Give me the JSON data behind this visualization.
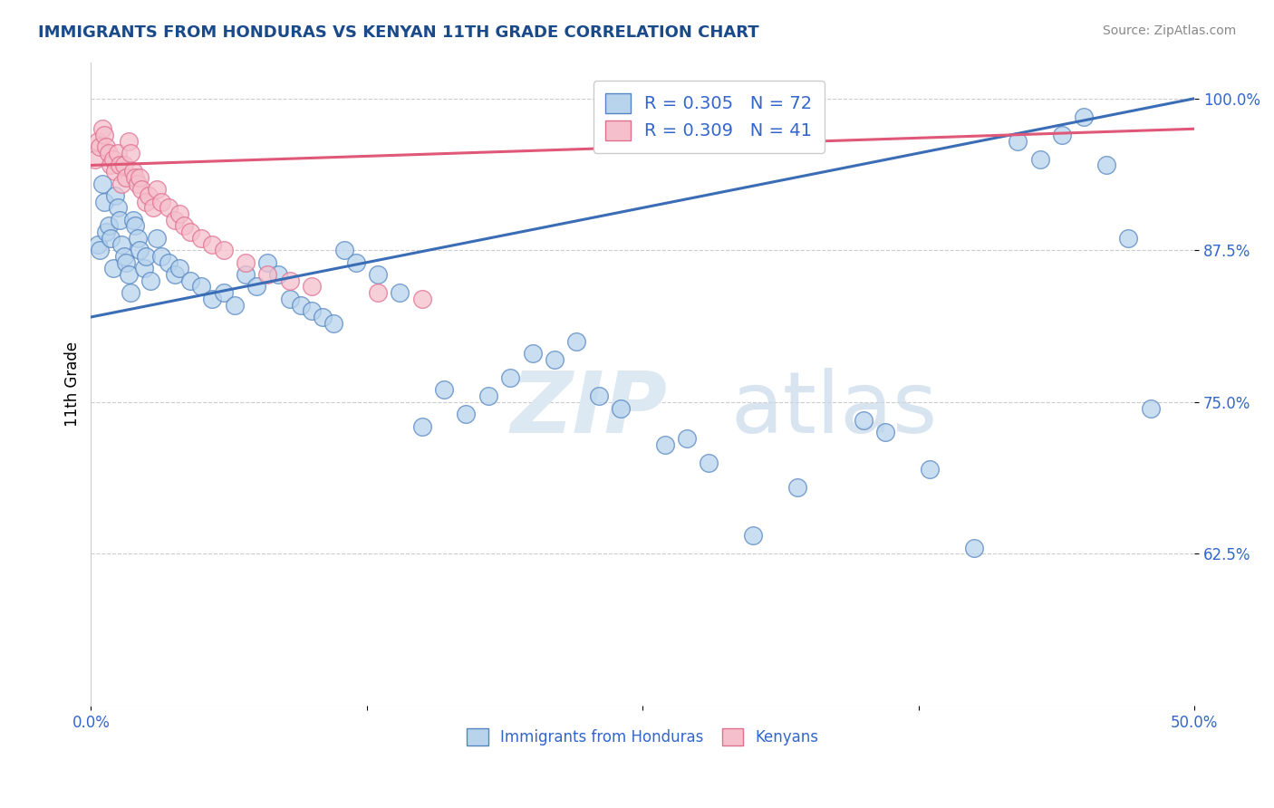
{
  "title": "IMMIGRANTS FROM HONDURAS VS KENYAN 11TH GRADE CORRELATION CHART",
  "source_text": "Source: ZipAtlas.com",
  "ylabel": "11th Grade",
  "xlim": [
    0.0,
    50.0
  ],
  "ylim": [
    50.0,
    103.0
  ],
  "yticks": [
    62.5,
    75.0,
    87.5,
    100.0
  ],
  "ytick_labels": [
    "62.5%",
    "75.0%",
    "87.5%",
    "100.0%"
  ],
  "xticks": [
    0.0,
    12.5,
    25.0,
    37.5,
    50.0
  ],
  "xtick_labels": [
    "0.0%",
    "",
    "",
    "",
    "50.0%"
  ],
  "blue_color": "#b8d4ed",
  "blue_edge_color": "#5585c0",
  "blue_line_color": "#3a6db5",
  "pink_color": "#f5c0cc",
  "pink_edge_color": "#e07090",
  "pink_line_color": "#e05878",
  "R_blue": 0.305,
  "N_blue": 72,
  "R_pink": 0.309,
  "N_pink": 41,
  "title_color": "#1a4a8a",
  "source_color": "#888888",
  "axis_color": "#3366cc",
  "watermark_zip": "ZIP",
  "watermark_atlas": "atlas",
  "blue_line_x0": 0.0,
  "blue_line_y0": 82.0,
  "blue_line_x1": 50.0,
  "blue_line_y1": 100.0,
  "pink_line_x0": 0.0,
  "pink_line_y0": 94.5,
  "pink_line_x1": 50.0,
  "pink_line_y1": 97.5,
  "blue_x": [
    0.3,
    0.4,
    0.5,
    0.6,
    0.7,
    0.8,
    0.9,
    1.0,
    1.1,
    1.2,
    1.3,
    1.4,
    1.5,
    1.6,
    1.7,
    1.8,
    1.9,
    2.0,
    2.1,
    2.2,
    2.4,
    2.5,
    2.7,
    3.0,
    3.2,
    3.5,
    3.8,
    4.0,
    4.5,
    5.0,
    5.5,
    6.0,
    6.5,
    7.0,
    7.5,
    8.0,
    8.5,
    9.0,
    9.5,
    10.0,
    10.5,
    11.0,
    11.5,
    12.0,
    13.0,
    14.0,
    15.0,
    16.0,
    17.0,
    18.0,
    19.0,
    20.0,
    21.0,
    22.0,
    23.0,
    24.0,
    26.0,
    27.0,
    28.0,
    30.0,
    32.0,
    35.0,
    36.0,
    38.0,
    40.0,
    42.0,
    43.0,
    44.0,
    45.0,
    46.0,
    47.0,
    48.0
  ],
  "blue_y": [
    88.0,
    87.5,
    93.0,
    91.5,
    89.0,
    89.5,
    88.5,
    86.0,
    92.0,
    91.0,
    90.0,
    88.0,
    87.0,
    86.5,
    85.5,
    84.0,
    90.0,
    89.5,
    88.5,
    87.5,
    86.0,
    87.0,
    85.0,
    88.5,
    87.0,
    86.5,
    85.5,
    86.0,
    85.0,
    84.5,
    83.5,
    84.0,
    83.0,
    85.5,
    84.5,
    86.5,
    85.5,
    83.5,
    83.0,
    82.5,
    82.0,
    81.5,
    87.5,
    86.5,
    85.5,
    84.0,
    73.0,
    76.0,
    74.0,
    75.5,
    77.0,
    79.0,
    78.5,
    80.0,
    75.5,
    74.5,
    71.5,
    72.0,
    70.0,
    64.0,
    68.0,
    73.5,
    72.5,
    69.5,
    63.0,
    96.5,
    95.0,
    97.0,
    98.5,
    94.5,
    88.5,
    74.5
  ],
  "pink_x": [
    0.2,
    0.3,
    0.4,
    0.5,
    0.6,
    0.7,
    0.8,
    0.9,
    1.0,
    1.1,
    1.2,
    1.3,
    1.4,
    1.5,
    1.6,
    1.7,
    1.8,
    1.9,
    2.0,
    2.1,
    2.2,
    2.3,
    2.5,
    2.6,
    2.8,
    3.0,
    3.2,
    3.5,
    3.8,
    4.0,
    4.2,
    4.5,
    5.0,
    5.5,
    6.0,
    7.0,
    8.0,
    9.0,
    10.0,
    13.0,
    15.0
  ],
  "pink_y": [
    95.0,
    96.5,
    96.0,
    97.5,
    97.0,
    96.0,
    95.5,
    94.5,
    95.0,
    94.0,
    95.5,
    94.5,
    93.0,
    94.5,
    93.5,
    96.5,
    95.5,
    94.0,
    93.5,
    93.0,
    93.5,
    92.5,
    91.5,
    92.0,
    91.0,
    92.5,
    91.5,
    91.0,
    90.0,
    90.5,
    89.5,
    89.0,
    88.5,
    88.0,
    87.5,
    86.5,
    85.5,
    85.0,
    84.5,
    84.0,
    83.5
  ]
}
